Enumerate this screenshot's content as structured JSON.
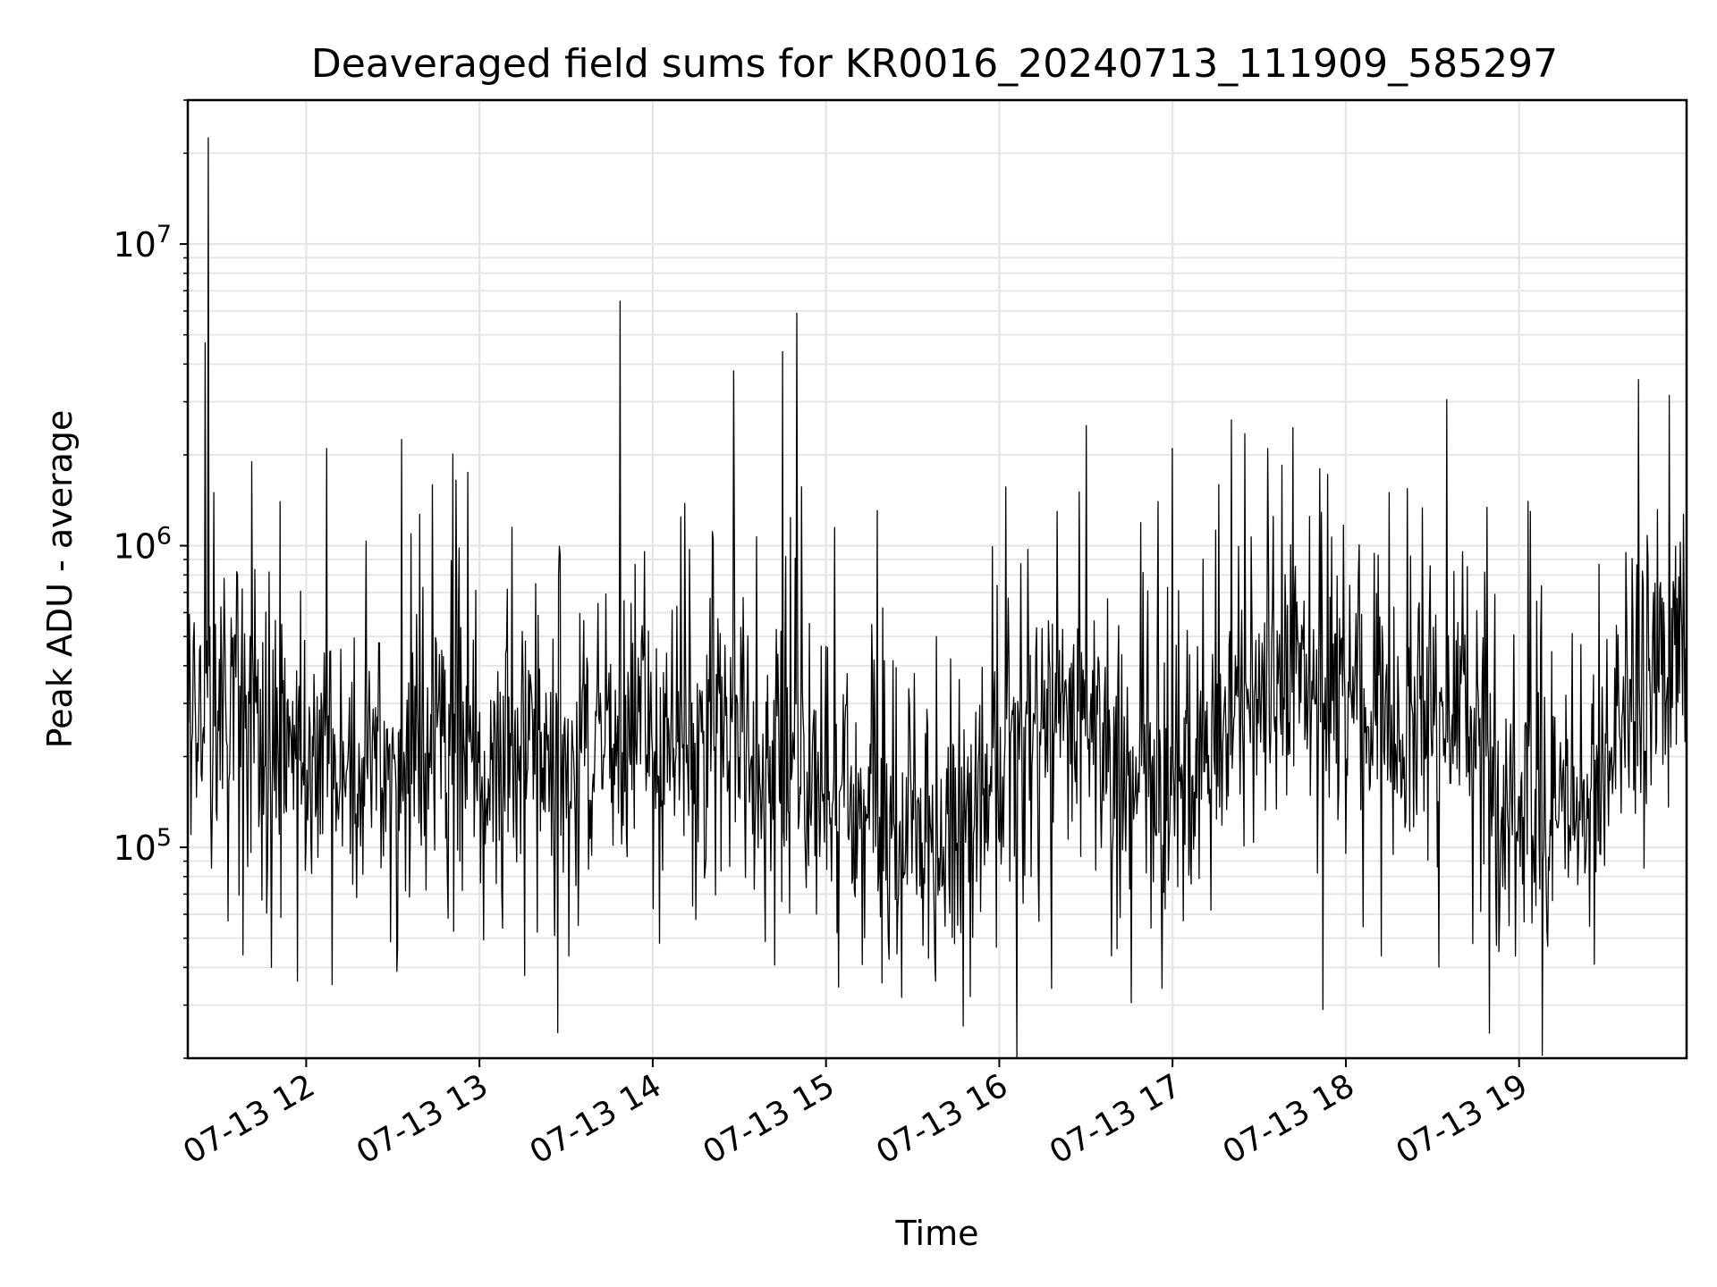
{
  "chart_data": {
    "type": "line",
    "title": "Deaveraged field sums for KR0016_20240713_111909_585297",
    "xlabel": "Time",
    "ylabel": "Peak ADU - average",
    "x_unit": "time of day, 2024-07-13",
    "x_range": [
      "2024-07-13 11:19",
      "2024-07-13 19:58"
    ],
    "y_scale": "log",
    "ylim": [
      20000,
      30000000
    ],
    "grid": true,
    "x_ticks": [
      {
        "time": "12:00",
        "label": "07-13 12"
      },
      {
        "time": "13:00",
        "label": "07-13 13"
      },
      {
        "time": "14:00",
        "label": "07-13 14"
      },
      {
        "time": "15:00",
        "label": "07-13 15"
      },
      {
        "time": "16:00",
        "label": "07-13 16"
      },
      {
        "time": "17:00",
        "label": "07-13 17"
      },
      {
        "time": "18:00",
        "label": "07-13 18"
      },
      {
        "time": "19:00",
        "label": "07-13 19"
      }
    ],
    "y_ticks": [
      {
        "value": 100000,
        "base": "10",
        "exp": "5"
      },
      {
        "value": 1000000,
        "base": "10",
        "exp": "6"
      },
      {
        "value": 10000000,
        "base": "10",
        "exp": "7"
      }
    ],
    "series": [
      {
        "color": "#000000",
        "baseline": [
          [
            "11:19",
            320000
          ],
          [
            "11:40",
            250000
          ],
          [
            "12:00",
            210000
          ],
          [
            "12:30",
            200000
          ],
          [
            "13:00",
            200000
          ],
          [
            "13:30",
            210000
          ],
          [
            "14:00",
            240000
          ],
          [
            "14:30",
            230000
          ],
          [
            "14:45",
            150000
          ],
          [
            "15:00",
            180000
          ],
          [
            "15:20",
            130000
          ],
          [
            "15:40",
            110000
          ],
          [
            "15:55",
            150000
          ],
          [
            "16:10",
            250000
          ],
          [
            "16:30",
            300000
          ],
          [
            "16:50",
            140000
          ],
          [
            "17:00",
            150000
          ],
          [
            "17:20",
            300000
          ],
          [
            "17:40",
            350000
          ],
          [
            "18:00",
            280000
          ],
          [
            "18:20",
            220000
          ],
          [
            "18:40",
            300000
          ],
          [
            "18:50",
            150000
          ],
          [
            "19:10",
            130000
          ],
          [
            "19:30",
            160000
          ],
          [
            "19:45",
            350000
          ],
          [
            "19:58",
            550000
          ]
        ],
        "spikes": [
          [
            "11:26",
            22500000
          ],
          [
            "11:25",
            4700000
          ],
          [
            "11:28",
            1500000
          ],
          [
            "11:33",
            57000
          ],
          [
            "11:38",
            44000
          ],
          [
            "11:41",
            1900000
          ],
          [
            "11:48",
            40000
          ],
          [
            "11:51",
            1400000
          ],
          [
            "11:57",
            36000
          ],
          [
            "12:07",
            2100000
          ],
          [
            "12:33",
            2250000
          ],
          [
            "12:56",
            1750000
          ],
          [
            "12:52",
            1650000
          ],
          [
            "13:26",
            51000
          ],
          [
            "14:11",
            1380000
          ],
          [
            "14:28",
            3800000
          ],
          [
            "14:45",
            4400000
          ],
          [
            "14:50",
            5900000
          ],
          [
            "15:03",
            1150000
          ],
          [
            "15:38",
            36000
          ],
          [
            "15:50",
            32000
          ],
          [
            "16:20",
            1300000
          ],
          [
            "16:30",
            2500000
          ],
          [
            "16:55",
            1400000
          ],
          [
            "17:00",
            2100000
          ],
          [
            "17:25",
            2350000
          ],
          [
            "17:33",
            2100000
          ],
          [
            "17:38",
            1850000
          ],
          [
            "17:51",
            1800000
          ],
          [
            "17:52",
            29000
          ],
          [
            "18:15",
            1500000
          ],
          [
            "18:35",
            3050000
          ],
          [
            "18:44",
            48000
          ],
          [
            "19:04",
            1300000
          ],
          [
            "19:10",
            47000
          ],
          [
            "19:37",
            950000
          ],
          [
            "19:52",
            3150000
          ]
        ]
      }
    ]
  }
}
